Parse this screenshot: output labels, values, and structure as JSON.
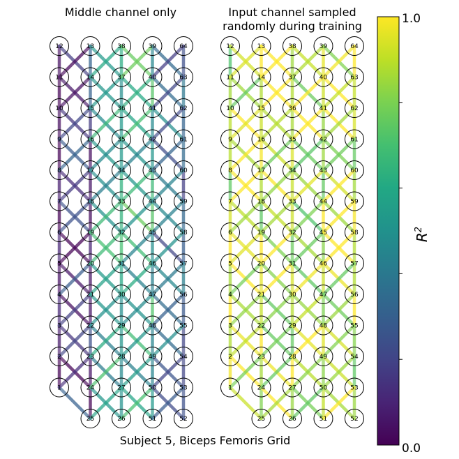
{
  "panels": [
    {
      "title_lines": [
        "Middle channel only"
      ],
      "grid": {
        "top_row": [
          "12",
          "13",
          "38",
          "39",
          "64"
        ],
        "col0": [
          "12",
          "11",
          "10",
          "9",
          "8",
          "7",
          "6",
          "5",
          "4",
          "3",
          "2",
          "1"
        ],
        "col1": [
          "13",
          "14",
          "15",
          "16",
          "17",
          "18",
          "19",
          "20",
          "21",
          "22",
          "23",
          "24",
          "25"
        ],
        "col2": [
          "38",
          "37",
          "36",
          "35",
          "34",
          "33",
          "32",
          "31",
          "30",
          "29",
          "28",
          "27",
          "26"
        ],
        "col3": [
          "39",
          "40",
          "41",
          "42",
          "43",
          "44",
          "45",
          "46",
          "47",
          "48",
          "49",
          "50",
          "51"
        ],
        "col4": [
          "64",
          "63",
          "62",
          "61",
          "60",
          "59",
          "58",
          "57",
          "56",
          "55",
          "54",
          "53",
          "52"
        ]
      },
      "edge_quality_by_column": [
        0.05,
        0.15,
        0.55,
        0.6,
        0.35
      ]
    },
    {
      "title_lines": [
        "Input channel sampled",
        "randomly during training"
      ],
      "grid": {
        "col0": [
          "12",
          "11",
          "10",
          "9",
          "8",
          "7",
          "6",
          "5",
          "4",
          "3",
          "2",
          "1"
        ],
        "col1": [
          "13",
          "14",
          "15",
          "16",
          "17",
          "18",
          "19",
          "20",
          "21",
          "22",
          "23",
          "24",
          "25"
        ],
        "col2": [
          "38",
          "37",
          "36",
          "35",
          "34",
          "33",
          "32",
          "31",
          "30",
          "29",
          "28",
          "27",
          "26"
        ],
        "col3": [
          "39",
          "40",
          "41",
          "42",
          "43",
          "44",
          "45",
          "46",
          "47",
          "48",
          "49",
          "50",
          "51"
        ],
        "col4": [
          "64",
          "63",
          "62",
          "61",
          "60",
          "59",
          "58",
          "57",
          "56",
          "55",
          "54",
          "53",
          "52"
        ]
      },
      "edge_quality_by_column": [
        0.88,
        0.9,
        0.92,
        0.88,
        0.9
      ]
    }
  ],
  "caption": "Subject 5, Biceps Femoris Grid",
  "colorbar": {
    "label": "R",
    "label_superscript": "2",
    "max_label": "1.0",
    "min_label": "0.0",
    "colormap": "viridis",
    "stops": [
      "#440154",
      "#482475",
      "#414487",
      "#355f8d",
      "#2a788e",
      "#21918c",
      "#22a884",
      "#44bf70",
      "#7ad151",
      "#bddf26",
      "#fde725"
    ]
  }
}
